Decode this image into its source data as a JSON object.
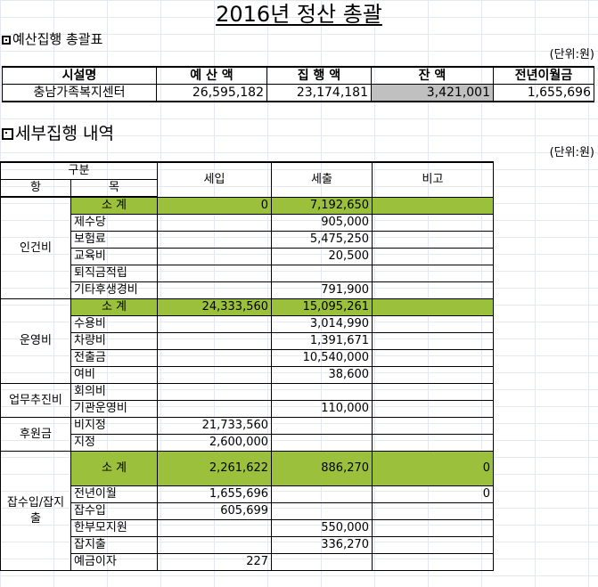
{
  "title": "2016년 정산 총괄",
  "budget_section": {
    "heading": "예산집행 총괄표",
    "unit": "(단위:원)",
    "headers": [
      "시설명",
      "예 산 액",
      "집 행 액",
      "잔 액",
      "전년이월금"
    ],
    "row": [
      "충남가족복지센터",
      "26,595,182",
      "23,174,181",
      "3,421,001",
      "1,655,696"
    ]
  },
  "detail_section": {
    "heading": "세부집행 내역",
    "unit": "(단위:원)",
    "header": {
      "category": "구분",
      "hang": "항",
      "mok": "목",
      "income": "세입",
      "expense": "세출",
      "note": "비고"
    },
    "groups": [
      {
        "name": "인건비",
        "subtotal": {
          "label": "소 계",
          "income": "0",
          "expense": "7,192,650",
          "note": ""
        },
        "items": [
          {
            "mok": "제수당",
            "income": "",
            "expense": "905,000",
            "note": ""
          },
          {
            "mok": "보험료",
            "income": "",
            "expense": "5,475,250",
            "note": ""
          },
          {
            "mok": "교육비",
            "income": "",
            "expense": "20,500",
            "note": ""
          },
          {
            "mok": "퇴직금적립",
            "income": "",
            "expense": "",
            "note": ""
          },
          {
            "mok": "기타후생경비",
            "income": "",
            "expense": "791,900",
            "note": ""
          }
        ]
      },
      {
        "name": "운영비",
        "subtotal": {
          "label": "소 계",
          "income": "24,333,560",
          "expense": "15,095,261",
          "note": ""
        },
        "items": [
          {
            "mok": "수용비",
            "income": "",
            "expense": "3,014,990",
            "note": ""
          },
          {
            "mok": "차량비",
            "income": "",
            "expense": "1,391,671",
            "note": ""
          },
          {
            "mok": "전출금",
            "income": "",
            "expense": "10,540,000",
            "note": ""
          },
          {
            "mok": "여비",
            "income": "",
            "expense": "38,600",
            "note": ""
          }
        ]
      },
      {
        "name": "업무추진비",
        "items": [
          {
            "mok": "회의비",
            "income": "",
            "expense": "",
            "note": ""
          },
          {
            "mok": "기관운영비",
            "income": "",
            "expense": "110,000",
            "note": ""
          }
        ]
      },
      {
        "name": "후원금",
        "items": [
          {
            "mok": "비지정",
            "income": "21,733,560",
            "expense": "",
            "note": ""
          },
          {
            "mok": "지정",
            "income": "2,600,000",
            "expense": "",
            "note": ""
          }
        ]
      },
      {
        "name": "잡수입/잡지출",
        "subtotal": {
          "label": "소 계",
          "income": "2,261,622",
          "expense": "886,270",
          "note": "0"
        },
        "items": [
          {
            "mok": "전년이월",
            "income": "1,655,696",
            "expense": "",
            "note": "0"
          },
          {
            "mok": "잡수입",
            "income": "605,699",
            "expense": "",
            "note": ""
          },
          {
            "mok": "한부모지원",
            "income": "",
            "expense": "550,000",
            "note": ""
          },
          {
            "mok": "잡지출",
            "income": "",
            "expense": "336,270",
            "note": ""
          },
          {
            "mok": "예금이자",
            "income": "227",
            "expense": "",
            "note": ""
          }
        ]
      }
    ]
  },
  "colors": {
    "subtotal_fill": "#9bc13c",
    "balance_fill": "#c0c0c0"
  }
}
